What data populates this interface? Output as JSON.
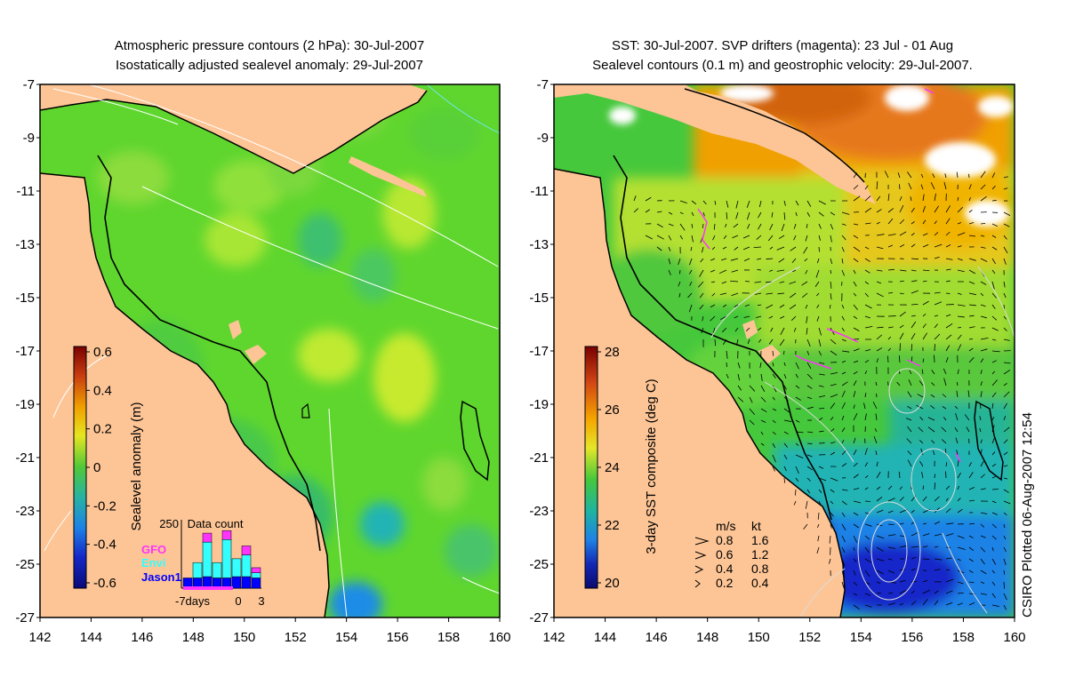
{
  "left_panel": {
    "title_line1": "Atmospheric pressure contours (2 hPa): 30-Jul-2007",
    "title_line2": "Isostatically adjusted sealevel anomaly: 29-Jul-2007",
    "colorbar": {
      "label": "Sealevel anomaly (m)",
      "ticks": [
        "0.6",
        "0.4",
        "0.2",
        "0",
        "-0.2",
        "-0.4",
        "-0.6"
      ]
    },
    "data_count": {
      "title": "Data count",
      "ymax_label": "250",
      "missions": [
        {
          "name": "GFO",
          "color": "#ff33ff"
        },
        {
          "name": "Envi",
          "color": "#33ffff"
        },
        {
          "name": "Jason1",
          "color": "#0000ff"
        }
      ],
      "x_labels": [
        "-7days",
        "0",
        "3"
      ],
      "bars": [
        {
          "jason": 40,
          "envi": 0,
          "gfo": 0
        },
        {
          "jason": 40,
          "envi": 60,
          "gfo": 0
        },
        {
          "jason": 45,
          "envi": 135,
          "gfo": 35
        },
        {
          "jason": 40,
          "envi": 60,
          "gfo": 0
        },
        {
          "jason": 40,
          "envi": 150,
          "gfo": 35
        },
        {
          "jason": 45,
          "envi": 70,
          "gfo": 0
        },
        {
          "jason": 45,
          "envi": 85,
          "gfo": 35
        },
        {
          "jason": 40,
          "envi": 20,
          "gfo": 20
        }
      ]
    }
  },
  "right_panel": {
    "title_line1": "SST: 30-Jul-2007. SVP drifters (magenta): 23 Jul - 01 Aug",
    "title_line2": "Sealevel contours (0.1 m) and geostrophic velocity: 29-Jul-2007.",
    "colorbar": {
      "label": "3-day SST composite (deg C)",
      "ticks": [
        "28",
        "26",
        "24",
        "22",
        "20"
      ]
    },
    "velocity_legend": {
      "unit_ms": "m/s",
      "unit_kt": "kt",
      "rows": [
        {
          "ms": "0.8",
          "kt": "1.6"
        },
        {
          "ms": "0.6",
          "kt": "1.2"
        },
        {
          "ms": "0.4",
          "kt": "0.8"
        },
        {
          "ms": "0.2",
          "kt": "0.4"
        }
      ]
    },
    "credit": "CSIRO Plotted 06-Aug-2007 12:54"
  },
  "axes": {
    "lon_labels": [
      "142",
      "144",
      "146",
      "148",
      "150",
      "152",
      "154",
      "156",
      "158",
      "160"
    ],
    "lat_labels": [
      "-7",
      "-9",
      "-11",
      "-13",
      "-15",
      "-17",
      "-19",
      "-21",
      "-23",
      "-25",
      "-27"
    ],
    "lon_range": [
      142,
      160
    ],
    "lat_range": [
      -27,
      -7
    ]
  },
  "colors": {
    "land": "#fdc596",
    "ssh_base": "#5fd62e",
    "coast": "#000000",
    "contour": "#ffffff"
  }
}
